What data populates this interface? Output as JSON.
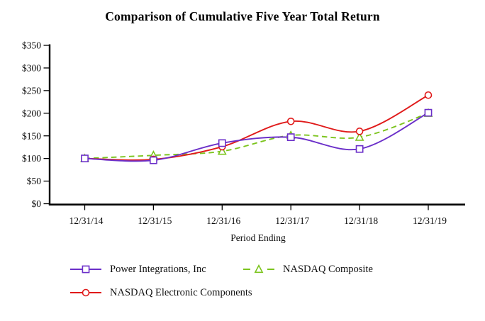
{
  "title": "Comparison of Cumulative Five Year Total Return",
  "chart_data": {
    "type": "line",
    "title": "Comparison of Cumulative Five Year Total Return",
    "xlabel": "Period Ending",
    "ylabel": "",
    "categories": [
      "12/31/14",
      "12/31/15",
      "12/31/16",
      "12/31/17",
      "12/31/18",
      "12/31/19"
    ],
    "series": [
      {
        "name": "NASDAQ Composite",
        "values": [
          100,
          107,
          116,
          151,
          147,
          200
        ],
        "color": "#7CC41E",
        "marker": "triangle",
        "line_style": "dashed"
      },
      {
        "name": "NASDAQ Electronic Components",
        "values": [
          100,
          98,
          126,
          182,
          160,
          240
        ],
        "color": "#E01A1A",
        "marker": "circle",
        "line_style": "solid"
      },
      {
        "name": "Power Integrations, Inc",
        "values": [
          100,
          96,
          134,
          147,
          121,
          201
        ],
        "color": "#6B2FC9",
        "marker": "square",
        "line_style": "solid"
      }
    ],
    "legend_order": [
      "Power Integrations, Inc",
      "NASDAQ Composite",
      "NASDAQ Electronic Components"
    ],
    "ylim": [
      0,
      350
    ],
    "ytick_interval": 50,
    "ytick_labels": [
      "$0",
      "$50",
      "$100",
      "$150",
      "$200",
      "$250",
      "$300",
      "$350"
    ],
    "grid": false,
    "legend_position": "below",
    "axis_color": "#000000"
  }
}
